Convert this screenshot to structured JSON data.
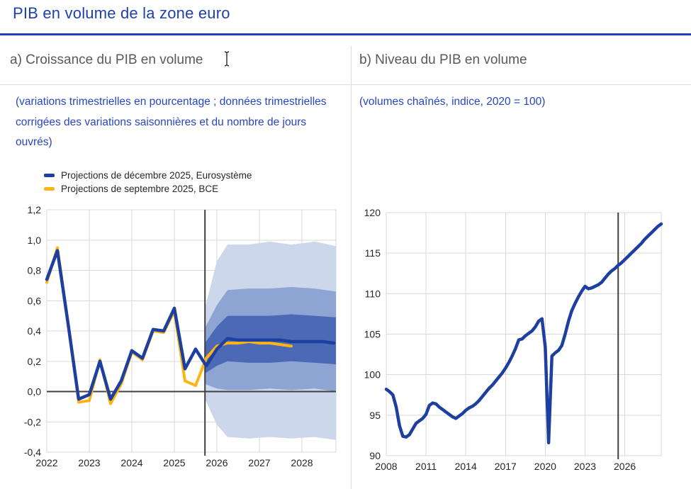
{
  "page": {
    "title": "PIB en volume de la zone euro"
  },
  "panels": {
    "a": {
      "header": "a) Croissance du PIB en volume",
      "subtitle": "(variations trimestrielles en pourcentage ; données trimestrielles corrigées des variations saisonnières et du nombre de jours ouvrés)"
    },
    "b": {
      "header": "b) Niveau du PIB en volume",
      "subtitle": "(volumes chaînés, indice, 2020 = 100)"
    }
  },
  "colors": {
    "title_blue": "#1e3fae",
    "rule_blue": "#2141c0",
    "subtitle_blue": "#2746c0",
    "header_gray": "#595959",
    "line_blue": "#1d3fa0",
    "line_yellow": "#fdb415",
    "band_dark": "#4b69b4",
    "band_mid": "#8ea4d3",
    "band_light": "#cdd7eb",
    "grid": "#d9d9d9",
    "axis": "#404040"
  },
  "chart_data": [
    {
      "type": "line",
      "title": "a) Croissance du PIB en volume",
      "unit": "variations trimestrielles en pourcentage",
      "x_domain": [
        2022,
        2028.8
      ],
      "y_domain": [
        -0.4,
        1.2
      ],
      "grid": true,
      "grid_color": "#d9d9d9",
      "axis_color": "#404040",
      "zero_line": 0,
      "projection_start": 2025.72,
      "x_ticks": {
        "values": [
          2022,
          2023,
          2024,
          2025,
          2026,
          2027,
          2028
        ],
        "labels": [
          "2022",
          "2023",
          "2024",
          "2025",
          "2026",
          "2027",
          "2028"
        ]
      },
      "y_ticks": {
        "values": [
          -0.4,
          -0.2,
          0.0,
          0.2,
          0.4,
          0.6,
          0.8,
          1.0,
          1.2
        ],
        "labels": [
          "-0,4",
          "-0,2",
          "0,0",
          "0,2",
          "0,4",
          "0,6",
          "0,8",
          "1,0",
          "1,2"
        ]
      },
      "legend": [
        {
          "label": "Projections de décembre 2025, Eurosystème",
          "color": "#1d3fa0"
        },
        {
          "label": "Projections de septembre 2025, BCE",
          "color": "#fdb415"
        }
      ],
      "bands": [
        {
          "name": "intervalle-large",
          "color": "#cdd7eb",
          "x": [
            2025.72,
            2026.0,
            2026.25,
            2026.75,
            2027.25,
            2027.75,
            2028.3,
            2028.8
          ],
          "top": [
            0.55,
            0.86,
            0.97,
            0.97,
            0.99,
            0.97,
            0.99,
            0.96
          ],
          "bottom": [
            -0.05,
            -0.22,
            -0.3,
            -0.31,
            -0.3,
            -0.31,
            -0.3,
            -0.32
          ]
        },
        {
          "name": "intervalle-moyen",
          "color": "#8ea4d3",
          "x": [
            2025.72,
            2026.0,
            2026.25,
            2026.75,
            2027.25,
            2027.75,
            2028.3,
            2028.8
          ],
          "top": [
            0.42,
            0.57,
            0.67,
            0.68,
            0.68,
            0.69,
            0.68,
            0.66
          ],
          "bottom": [
            0.05,
            0.02,
            0.01,
            0.01,
            0.02,
            0.01,
            0.02,
            0.0
          ]
        },
        {
          "name": "intervalle-etroit",
          "color": "#4b69b4",
          "x": [
            2025.72,
            2026.0,
            2026.25,
            2026.75,
            2027.25,
            2027.75,
            2028.3,
            2028.8
          ],
          "top": [
            0.32,
            0.43,
            0.5,
            0.5,
            0.5,
            0.51,
            0.5,
            0.49
          ],
          "bottom": [
            0.12,
            0.17,
            0.2,
            0.19,
            0.19,
            0.2,
            0.19,
            0.18
          ]
        }
      ],
      "series": [
        {
          "name": "Projections de septembre 2025, BCE",
          "color": "#fdb415",
          "width": 4,
          "start": 2022,
          "step": 0.25,
          "values": [
            0.72,
            0.95,
            0.45,
            -0.07,
            -0.06,
            0.21,
            -0.08,
            0.05,
            0.26,
            0.21,
            0.4,
            0.39,
            0.53,
            0.07,
            0.04,
            0.22,
            0.3,
            0.32,
            0.32,
            0.33,
            0.32,
            0.32,
            0.31,
            0.3
          ]
        },
        {
          "name": "Projections de décembre 2025, Eurosystème",
          "color": "#1d3fa0",
          "width": 4.5,
          "start": 2022,
          "step": 0.25,
          "values": [
            0.74,
            0.93,
            0.45,
            -0.05,
            -0.02,
            0.2,
            -0.05,
            0.07,
            0.27,
            0.22,
            0.41,
            0.4,
            0.55,
            0.15,
            0.28,
            0.17,
            0.28,
            0.35,
            0.34,
            0.34,
            0.34,
            0.34,
            0.34,
            0.33,
            0.33,
            0.33,
            0.33,
            0.32
          ]
        }
      ]
    },
    {
      "type": "line",
      "title": "b) Niveau du PIB en volume",
      "unit": "volumes chaînés, indice, 2020 = 100",
      "x_domain": [
        2008,
        2028.75
      ],
      "y_domain": [
        90,
        120
      ],
      "grid": true,
      "grid_color": "#d9d9d9",
      "axis_color": "#404040",
      "projection_start": 2025.5,
      "x_ticks": {
        "values": [
          2008,
          2011,
          2014,
          2017,
          2020,
          2023,
          2026
        ],
        "labels": [
          "2008",
          "2011",
          "2014",
          "2017",
          "2020",
          "2023",
          "2026"
        ]
      },
      "y_ticks": {
        "values": [
          90,
          95,
          100,
          105,
          110,
          115,
          120
        ],
        "labels": [
          "90",
          "95",
          "100",
          "105",
          "110",
          "115",
          "120"
        ]
      },
      "series": [
        {
          "name": "PIB en volume (indice)",
          "color": "#1d3fa0",
          "width": 4.5,
          "start": 2008,
          "step": 0.25,
          "values": [
            98.2,
            97.9,
            97.5,
            96.0,
            93.7,
            92.4,
            92.3,
            92.6,
            93.3,
            94.0,
            94.3,
            94.6,
            95.1,
            96.2,
            96.5,
            96.4,
            96.0,
            95.7,
            95.4,
            95.1,
            94.8,
            94.6,
            94.9,
            95.2,
            95.6,
            95.9,
            96.1,
            96.4,
            96.8,
            97.3,
            97.8,
            98.3,
            98.7,
            99.2,
            99.7,
            100.2,
            100.8,
            101.5,
            102.3,
            103.2,
            104.3,
            104.4,
            104.8,
            105.1,
            105.4,
            105.9,
            106.6,
            106.9,
            103.4,
            91.6,
            102.3,
            102.7,
            103.0,
            103.6,
            105.0,
            106.6,
            107.9,
            108.8,
            109.6,
            110.3,
            110.9,
            110.6,
            110.7,
            110.9,
            111.1,
            111.4,
            111.9,
            112.4,
            112.8,
            113.1,
            113.5,
            113.8,
            114.2,
            114.6,
            115.0,
            115.4,
            115.8,
            116.2,
            116.7,
            117.1,
            117.5,
            117.9,
            118.3,
            118.6
          ]
        }
      ]
    }
  ]
}
